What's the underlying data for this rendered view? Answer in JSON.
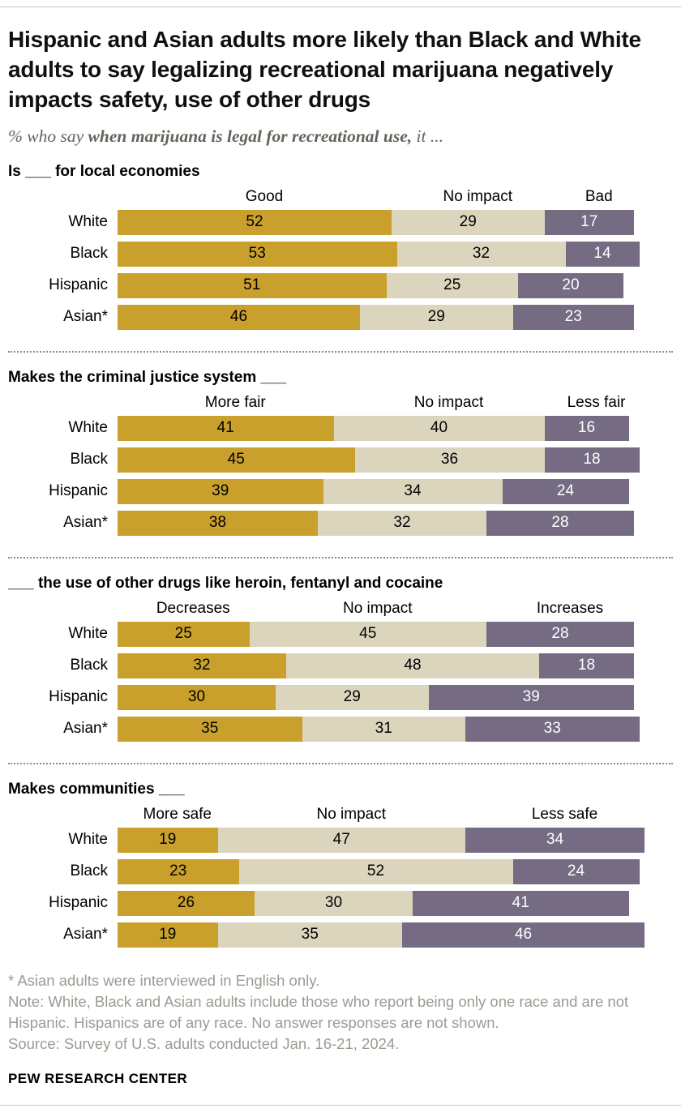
{
  "header": {
    "title": "Hispanic and Asian adults more likely than Black and White adults to say legalizing recreational marijuana negatively impacts safety, use of other drugs",
    "subtitle_prefix": "% who say ",
    "subtitle_bold": "when marijuana is legal for recreational use,",
    "subtitle_suffix": " it ..."
  },
  "colors": {
    "segments": [
      "#C9A02C",
      "#DBD5BE",
      "#756B82"
    ],
    "segment_text": [
      "#000000",
      "#000000",
      "#FFFFFF"
    ],
    "divider": "#8d8b85"
  },
  "chart_data": [
    {
      "type": "bar",
      "stacked": true,
      "orientation": "horizontal",
      "title": "Is ___ for local economies",
      "xlim": [
        0,
        100
      ],
      "value_unit": "%",
      "categories": [
        "White",
        "Black",
        "Hispanic",
        "Asian*"
      ],
      "series": [
        {
          "name": "Good",
          "values": [
            52,
            53,
            51,
            46
          ]
        },
        {
          "name": "No impact",
          "values": [
            29,
            32,
            25,
            29
          ]
        },
        {
          "name": "Bad",
          "values": [
            17,
            14,
            20,
            23
          ]
        }
      ]
    },
    {
      "type": "bar",
      "stacked": true,
      "orientation": "horizontal",
      "title": "Makes the criminal justice system ___",
      "xlim": [
        0,
        100
      ],
      "value_unit": "%",
      "categories": [
        "White",
        "Black",
        "Hispanic",
        "Asian*"
      ],
      "series": [
        {
          "name": "More fair",
          "values": [
            41,
            45,
            39,
            38
          ]
        },
        {
          "name": "No impact",
          "values": [
            40,
            36,
            34,
            32
          ]
        },
        {
          "name": "Less fair",
          "values": [
            16,
            18,
            24,
            28
          ]
        }
      ]
    },
    {
      "type": "bar",
      "stacked": true,
      "orientation": "horizontal",
      "title": "___ the use of other drugs like heroin, fentanyl and cocaine",
      "xlim": [
        0,
        100
      ],
      "value_unit": "%",
      "categories": [
        "White",
        "Black",
        "Hispanic",
        "Asian*"
      ],
      "series": [
        {
          "name": "Decreases",
          "values": [
            25,
            32,
            30,
            35
          ]
        },
        {
          "name": "No impact",
          "values": [
            45,
            48,
            29,
            31
          ]
        },
        {
          "name": "Increases",
          "values": [
            28,
            18,
            39,
            33
          ]
        }
      ]
    },
    {
      "type": "bar",
      "stacked": true,
      "orientation": "horizontal",
      "title": "Makes communities ___",
      "xlim": [
        0,
        100
      ],
      "value_unit": "%",
      "categories": [
        "White",
        "Black",
        "Hispanic",
        "Asian*"
      ],
      "series": [
        {
          "name": "More safe",
          "values": [
            19,
            23,
            26,
            19
          ]
        },
        {
          "name": "No impact",
          "values": [
            47,
            52,
            30,
            35
          ]
        },
        {
          "name": "Less safe",
          "values": [
            34,
            24,
            41,
            46
          ]
        }
      ]
    }
  ],
  "footnotes": {
    "asterisk": "* Asian adults were interviewed in English only.",
    "note": "Note: White, Black and Asian adults include those who report being only one race and are not Hispanic. Hispanics are of any race. No answer responses are not shown.",
    "source": "Source: Survey of U.S. adults conducted Jan. 16-21, 2024."
  },
  "footer": {
    "brand": "PEW RESEARCH CENTER"
  }
}
